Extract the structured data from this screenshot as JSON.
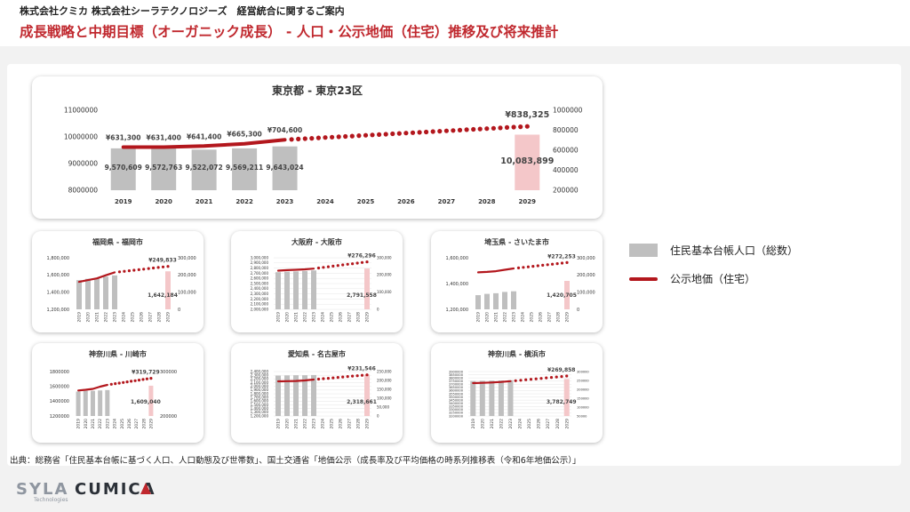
{
  "header": {
    "subtitle": "株式会社クミカ 株式会社シーラテクノロジーズ　経営統合に関するご案内",
    "title": "成長戦略と中期目標（オーガニック成長） - 人口・公示地価（住宅）推移及び将来推計"
  },
  "legend": {
    "population": "住民基本台帳人口（総数）",
    "land_price": "公示地価（住宅）"
  },
  "colors": {
    "title": "#c0282e",
    "bar": "#bfbfbf",
    "forecast_bar": "#f4c7c9",
    "line": "#b3171d"
  },
  "source": "出典：総務省「住民基本台帳に基づく人口、人口動態及び世帯数」、国土交通省「地価公示（成長率及び平均価格の時系列推移表（令和6年地価公示）」",
  "logos": {
    "left": "SYLA",
    "left_sub": "Technologies",
    "right": "CUMICA"
  },
  "chart_data": [
    {
      "type": "bar+line",
      "title": "東京都 - 東京23区",
      "categories": [
        "2019",
        "2020",
        "2021",
        "2022",
        "2023",
        "2024",
        "2025",
        "2026",
        "2027",
        "2028",
        "2029"
      ],
      "y_left_ticks": [
        "11000000",
        "10000000",
        "9000000",
        "8000000"
      ],
      "y_left_range": [
        8000000,
        11000000
      ],
      "y_right_ticks": [
        "1000000",
        "800000",
        "600000",
        "400000",
        "200000"
      ],
      "y_right_range": [
        200000,
        1000000
      ],
      "bars": [
        9570609,
        9572763,
        9522072,
        9569211,
        9643024,
        null,
        null,
        null,
        null,
        null,
        10083899
      ],
      "bar_labels": [
        "9,570,609",
        "9,572,763",
        "9,522,072",
        "9,569,211",
        "9,643,024",
        "",
        "",
        "",
        "",
        "",
        "10,083,899"
      ],
      "line": [
        631300,
        631400,
        641400,
        665300,
        704600,
        null,
        null,
        null,
        null,
        null,
        838325
      ],
      "line_labels": [
        "¥631,300",
        "¥631,400",
        "¥641,400",
        "¥665,300",
        "¥704,600",
        "",
        "",
        "",
        "",
        "",
        "¥838,325"
      ]
    },
    {
      "type": "bar+line",
      "title": "福岡県 - 福岡市",
      "categories": [
        "2019",
        "2020",
        "2021",
        "2022",
        "2023",
        "2024",
        "2025",
        "2026",
        "2027",
        "2028",
        "2029"
      ],
      "y_left_ticks": [
        "1,800,000",
        "1,600,000",
        "1,400,000",
        "1,200,000"
      ],
      "y_left_range": [
        1200000,
        1800000
      ],
      "y_right_ticks": [
        "300,000",
        "200,000",
        "100,000",
        "0"
      ],
      "y_right_range": [
        0,
        300000
      ],
      "bars": [
        1540000,
        1555000,
        1565000,
        1580000,
        1595000,
        null,
        null,
        null,
        null,
        null,
        1642184
      ],
      "line": [
        160000,
        170000,
        180000,
        198000,
        215000,
        null,
        null,
        null,
        null,
        null,
        249833
      ],
      "end_bar_label": "1,642,184",
      "end_line_label": "¥249,833"
    },
    {
      "type": "bar+line",
      "title": "大阪府 - 大阪市",
      "categories": [
        "2019",
        "2020",
        "2021",
        "2022",
        "2023",
        "2024",
        "2025",
        "2026",
        "2027",
        "2028",
        "2029"
      ],
      "y_left_ticks": [
        "3,000,000",
        "2,900,000",
        "2,800,000",
        "2,700,000",
        "2,600,000",
        "2,500,000",
        "2,400,000",
        "2,300,000",
        "2,200,000",
        "2,100,000",
        "2,000,000"
      ],
      "y_left_range": [
        2000000,
        3000000
      ],
      "y_right_ticks": [
        "300,000",
        "200,000",
        "100,000",
        "0"
      ],
      "y_right_range": [
        0,
        300000
      ],
      "bars": [
        2720000,
        2730000,
        2735000,
        2745000,
        2755000,
        null,
        null,
        null,
        null,
        null,
        2791558
      ],
      "line": [
        225000,
        228000,
        230000,
        233000,
        237000,
        null,
        null,
        null,
        null,
        null,
        276296
      ],
      "end_bar_label": "2,791,558",
      "end_line_label": "¥276,296"
    },
    {
      "type": "bar+line",
      "title": "埼玉県 - さいたま市",
      "categories": [
        "2019",
        "2020",
        "2021",
        "2022",
        "2023",
        "2024",
        "2025",
        "2026",
        "2027",
        "2028",
        "2029"
      ],
      "y_left_ticks": [
        "1,600,000",
        "1,400,000",
        "1,200,000"
      ],
      "y_left_range": [
        1200000,
        1600000
      ],
      "y_right_ticks": [
        "300,000",
        "200,000",
        "100,000",
        "0"
      ],
      "y_right_range": [
        0,
        300000
      ],
      "bars": [
        1310000,
        1320000,
        1325000,
        1335000,
        1340000,
        null,
        null,
        null,
        null,
        null,
        1420705
      ],
      "line": [
        215000,
        218000,
        222000,
        230000,
        238000,
        null,
        null,
        null,
        null,
        null,
        272253
      ],
      "end_bar_label": "1,420,705",
      "end_line_label": "¥272,253"
    },
    {
      "type": "bar+line",
      "title": "神奈川県 - 川崎市",
      "categories": [
        "2019",
        "2020",
        "2021",
        "2022",
        "2023",
        "2024",
        "2025",
        "2026",
        "2027",
        "2028",
        "2029"
      ],
      "y_left_ticks": [
        "1800000",
        "1600000",
        "1400000",
        "1200000"
      ],
      "y_left_range": [
        1200000,
        1800000
      ],
      "y_right_ticks": [
        "300000",
        "200000"
      ],
      "y_right_range": [
        150000,
        350000
      ],
      "bars": [
        1530000,
        1540000,
        1540000,
        1545000,
        1550000,
        null,
        null,
        null,
        null,
        null,
        1609040
      ],
      "line": [
        265000,
        268000,
        272000,
        282000,
        290000,
        null,
        null,
        null,
        null,
        null,
        319729
      ],
      "end_bar_label": "1,609,040",
      "end_line_label": "¥319,729"
    },
    {
      "type": "bar+line",
      "title": "愛知県 - 名古屋市",
      "categories": [
        "2019",
        "2020",
        "2021",
        "2022",
        "2023",
        "2024",
        "2025",
        "2026",
        "2027",
        "2028",
        "2029"
      ],
      "y_left_ticks": [
        "2,400,000",
        "2,300,000",
        "2,200,000",
        "2,100,000",
        "2,000,000",
        "1,900,000",
        "1,800,000",
        "1,700,000",
        "1,600,000",
        "1,500,000",
        "1,400,000",
        "1,300,000",
        "1,200,000"
      ],
      "y_left_range": [
        1200000,
        2400000
      ],
      "y_right_ticks": [
        "250,000",
        "200,000",
        "150,000",
        "100,000",
        "50,000",
        "0"
      ],
      "y_right_range": [
        0,
        250000
      ],
      "bars": [
        2290000,
        2295000,
        2300000,
        2300000,
        2305000,
        null,
        null,
        null,
        null,
        null,
        2318661
      ],
      "line": [
        195000,
        196000,
        197000,
        200000,
        205000,
        null,
        null,
        null,
        null,
        null,
        231546
      ],
      "end_bar_label": "2,318,661",
      "end_line_label": "¥231,546"
    },
    {
      "type": "bar+line",
      "title": "神奈川県 - 横浜市",
      "categories": [
        "2019",
        "2020",
        "2021",
        "2022",
        "2023",
        "2024",
        "2025",
        "2026",
        "2027",
        "2028",
        "2029"
      ],
      "y_left_ticks": [
        "3900000",
        "3850000",
        "3800000",
        "3750000",
        "3700000",
        "3650000",
        "3600000",
        "3550000",
        "3500000",
        "3450000",
        "3400000",
        "3350000",
        "3300000",
        "3250000",
        "3200000"
      ],
      "y_left_range": [
        3200000,
        3900000
      ],
      "y_right_ticks": [
        "300000",
        "250000",
        "200000",
        "150000",
        "100000",
        "50000"
      ],
      "y_right_range": [
        0,
        300000
      ],
      "bars": [
        3750000,
        3755000,
        3758000,
        3760000,
        3765000,
        null,
        null,
        null,
        null,
        null,
        3782749
      ],
      "line": [
        222000,
        224000,
        226000,
        230000,
        235000,
        null,
        null,
        null,
        null,
        null,
        269858
      ],
      "end_bar_label": "3,782,749",
      "end_line_label": "¥269,858"
    }
  ]
}
